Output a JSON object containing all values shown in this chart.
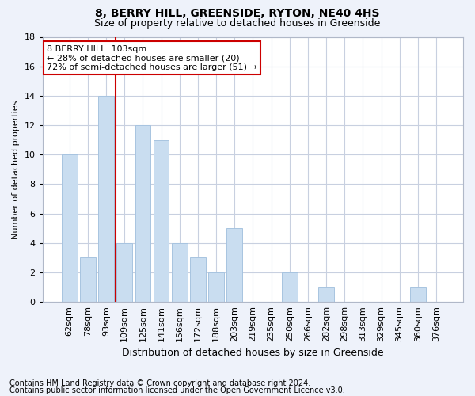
{
  "title1": "8, BERRY HILL, GREENSIDE, RYTON, NE40 4HS",
  "title2": "Size of property relative to detached houses in Greenside",
  "xlabel": "Distribution of detached houses by size in Greenside",
  "ylabel": "Number of detached properties",
  "categories": [
    "62sqm",
    "78sqm",
    "93sqm",
    "109sqm",
    "125sqm",
    "141sqm",
    "156sqm",
    "172sqm",
    "188sqm",
    "203sqm",
    "219sqm",
    "235sqm",
    "250sqm",
    "266sqm",
    "282sqm",
    "298sqm",
    "313sqm",
    "329sqm",
    "345sqm",
    "360sqm",
    "376sqm"
  ],
  "values": [
    10,
    3,
    14,
    4,
    12,
    11,
    4,
    3,
    2,
    5,
    0,
    0,
    2,
    0,
    1,
    0,
    0,
    0,
    0,
    1,
    0
  ],
  "bar_color": "#c9ddf0",
  "bar_edge_color": "#a8c4e0",
  "vline_x_index": 2.5,
  "vline_color": "#cc0000",
  "annotation_text": "8 BERRY HILL: 103sqm\n← 28% of detached houses are smaller (20)\n72% of semi-detached houses are larger (51) →",
  "annotation_box_facecolor": "#ffffff",
  "annotation_box_edgecolor": "#cc0000",
  "ylim": [
    0,
    18
  ],
  "yticks": [
    0,
    2,
    4,
    6,
    8,
    10,
    12,
    14,
    16,
    18
  ],
  "footnote_line1": "Contains HM Land Registry data © Crown copyright and database right 2024.",
  "footnote_line2": "Contains public sector information licensed under the Open Government Licence v3.0.",
  "bg_color": "#eef2fa",
  "plot_bg_color": "#ffffff",
  "grid_color": "#c8d0e0",
  "title1_fontsize": 10,
  "title2_fontsize": 9,
  "xlabel_fontsize": 9,
  "ylabel_fontsize": 8,
  "tick_fontsize": 8,
  "annot_fontsize": 8,
  "footnote_fontsize": 7
}
